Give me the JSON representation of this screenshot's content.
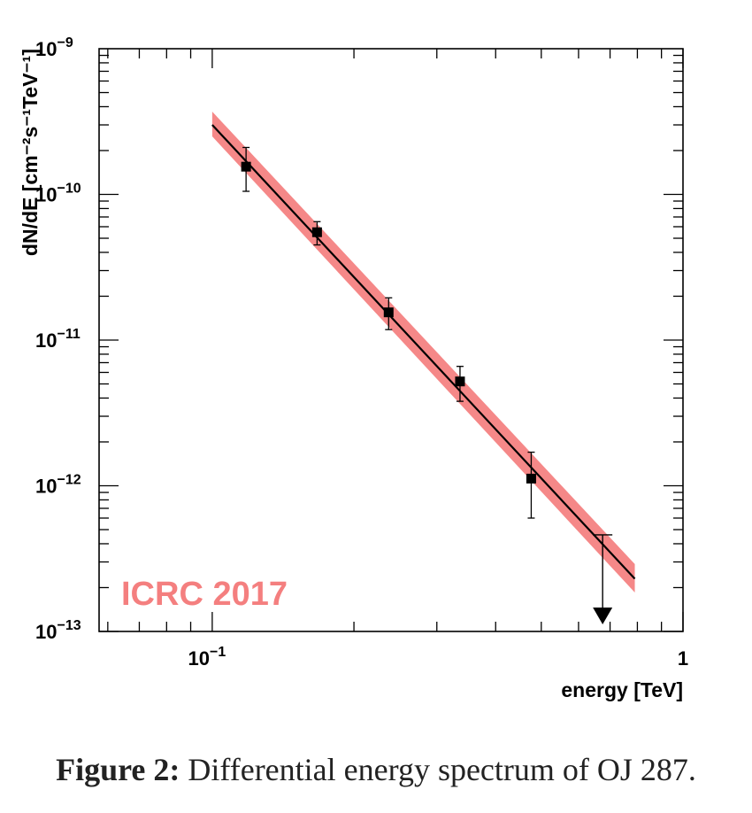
{
  "chart_data": {
    "type": "scatter",
    "x_scale": "log",
    "y_scale": "log",
    "xlim": [
      0.0575,
      1.0
    ],
    "ylim": [
      1e-13,
      1e-09
    ],
    "xlabel": "energy [TeV]",
    "ylabel": "dN/dE [cm⁻²s⁻¹TeV⁻¹]",
    "x_ticks": [
      {
        "value": 0.1,
        "base": "10",
        "exp": "−1"
      },
      {
        "value": 1,
        "base": "1",
        "exp": ""
      }
    ],
    "y_ticks": [
      {
        "value": 1e-09,
        "base": "10",
        "exp": "−9"
      },
      {
        "value": 1e-10,
        "base": "10",
        "exp": "−10"
      },
      {
        "value": 1e-11,
        "base": "10",
        "exp": "−11"
      },
      {
        "value": 1e-12,
        "base": "10",
        "exp": "−12"
      },
      {
        "value": 1e-13,
        "base": "10",
        "exp": "−13"
      }
    ],
    "points": [
      {
        "x": 0.118,
        "y": 1.55e-10,
        "y_low": 1.05e-10,
        "y_high": 2.1e-10
      },
      {
        "x": 0.167,
        "y": 5.5e-11,
        "y_low": 4.5e-11,
        "y_high": 6.5e-11
      },
      {
        "x": 0.237,
        "y": 1.55e-11,
        "y_low": 1.18e-11,
        "y_high": 1.95e-11
      },
      {
        "x": 0.336,
        "y": 5.2e-12,
        "y_low": 3.8e-12,
        "y_high": 6.6e-12
      },
      {
        "x": 0.476,
        "y": 1.12e-12,
        "y_low": 6e-13,
        "y_high": 1.7e-12
      }
    ],
    "upper_limits": [
      {
        "x": 0.675,
        "y": 4.6e-13
      }
    ],
    "fit": {
      "x_range": [
        0.1,
        0.79
      ],
      "y_at_start": 3e-10,
      "y_at_end": 2.3e-13,
      "band_y_at_start": [
        2.5e-10,
        3.7e-10
      ],
      "band_y_at_end": [
        1.85e-13,
        2.9e-13
      ],
      "line_color": "#000000",
      "band_color": "#f26a6a"
    },
    "annotation": "ICRC 2017",
    "annotation_color": "#f47f7f"
  },
  "caption": {
    "label": "Figure 2:",
    "text": "Differential energy spectrum of OJ 287."
  }
}
